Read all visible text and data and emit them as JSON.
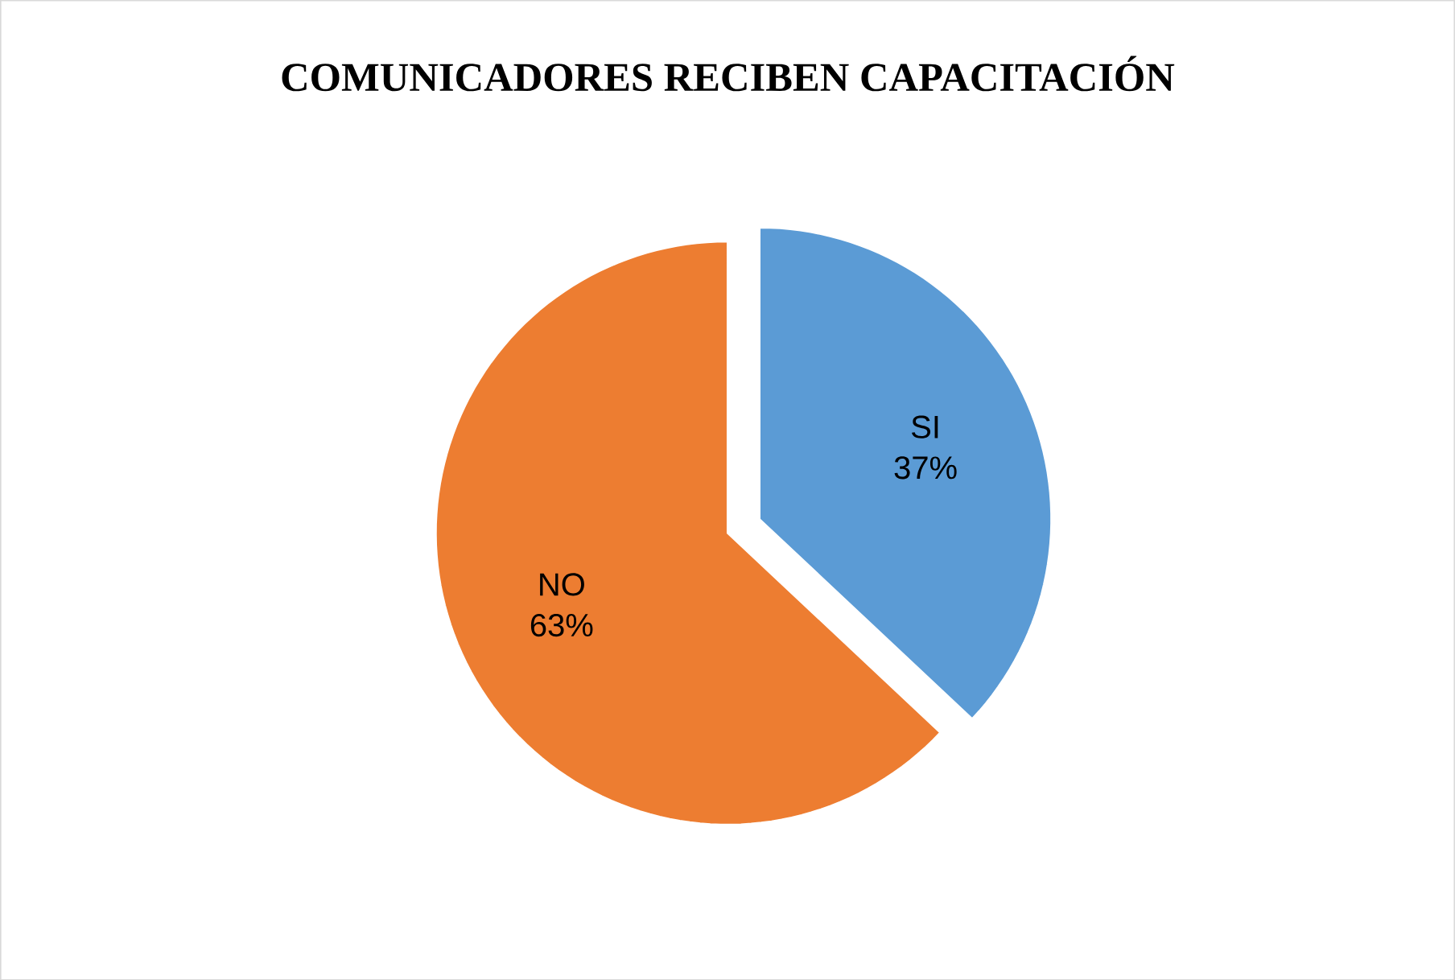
{
  "chart_data": {
    "type": "pie",
    "title": "COMUNICADORES RECIBEN CAPACITACIÓN",
    "categories": [
      "SI",
      "NO"
    ],
    "values": [
      37,
      63
    ],
    "value_labels": [
      "37%",
      "63%"
    ],
    "colors": [
      "#5b9bd5",
      "#ed7d31"
    ]
  }
}
